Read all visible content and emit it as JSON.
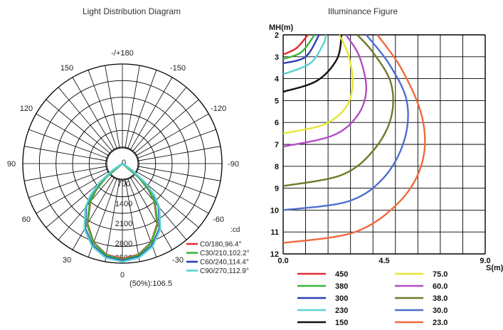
{
  "chart_data": [
    {
      "type": "polar-line",
      "title": "Light Distribution Diagram",
      "unit_label": ":cd",
      "angle_labels": [
        "-/+180",
        "150",
        "120",
        "90",
        "60",
        "30",
        "0",
        "-30",
        "-60",
        "-90",
        "-120",
        "-150"
      ],
      "radial_labels": [
        "0",
        "700",
        "1400",
        "2100",
        "2800",
        "3500"
      ],
      "rmax": 3500,
      "half_power_label": "(50%):106.5",
      "series": [
        {
          "name": "C0/180,96.4°",
          "color": "#e03030",
          "angles": [
            0,
            10,
            20,
            30,
            40,
            45,
            50,
            55
          ],
          "values": [
            3350,
            3250,
            2950,
            2450,
            1750,
            1300,
            750,
            0
          ]
        },
        {
          "name": "C30/210,102.2°",
          "color": "#3cb43c",
          "angles": [
            0,
            10,
            20,
            30,
            40,
            45,
            50,
            55
          ],
          "values": [
            3380,
            3270,
            2970,
            2480,
            1780,
            1330,
            780,
            0
          ]
        },
        {
          "name": "C60/240,114.4°",
          "color": "#2e3fb4",
          "angles": [
            0,
            10,
            20,
            30,
            40,
            45,
            50,
            55,
            58
          ],
          "values": [
            3420,
            3330,
            3060,
            2620,
            1980,
            1550,
            1020,
            400,
            0
          ]
        },
        {
          "name": "C90/270,112.9°",
          "color": "#5ad2d2",
          "angles": [
            0,
            10,
            20,
            30,
            40,
            45,
            50,
            55,
            58
          ],
          "values": [
            3450,
            3360,
            3100,
            2660,
            2020,
            1590,
            1060,
            440,
            0
          ]
        }
      ]
    },
    {
      "type": "contour",
      "title": "Illuminance Figure",
      "ylabel": "MH(m)",
      "xlabel": "S(m)",
      "y_ticks": [
        2,
        3,
        4,
        5,
        6,
        7,
        8,
        9,
        10,
        11,
        12
      ],
      "x_ticks": [
        "0.0",
        "4.5",
        "9.0"
      ],
      "xlim": [
        0,
        9
      ],
      "ylim": [
        2,
        12
      ],
      "series": [
        {
          "name": "450",
          "color": "#e03030",
          "points": [
            [
              0,
              2.9
            ],
            [
              0.6,
              2.6
            ],
            [
              1.1,
              2.0
            ]
          ]
        },
        {
          "name": "380",
          "color": "#3cb43c",
          "points": [
            [
              0,
              3.1
            ],
            [
              0.8,
              2.8
            ],
            [
              1.4,
              2.0
            ]
          ]
        },
        {
          "name": "300",
          "color": "#2e3fb4",
          "points": [
            [
              0,
              3.3
            ],
            [
              1.0,
              3.0
            ],
            [
              1.6,
              2.0
            ]
          ]
        },
        {
          "name": "230",
          "color": "#5ad2d2",
          "points": [
            [
              0,
              3.8
            ],
            [
              1.2,
              3.3
            ],
            [
              1.8,
              2.4
            ],
            [
              1.9,
              2.0
            ]
          ]
        },
        {
          "name": "150",
          "color": "#111111",
          "points": [
            [
              0,
              4.6
            ],
            [
              1.5,
              4.1
            ],
            [
              2.4,
              3.1
            ],
            [
              2.6,
              2.0
            ]
          ]
        },
        {
          "name": "75.0",
          "color": "#e6e635",
          "points": [
            [
              0,
              6.5
            ],
            [
              1.8,
              6.1
            ],
            [
              2.8,
              5.3
            ],
            [
              3.1,
              4.2
            ],
            [
              2.9,
              2.9
            ],
            [
              2.5,
              2.0
            ]
          ]
        },
        {
          "name": "60.0",
          "color": "#b44cc8",
          "points": [
            [
              0,
              7.1
            ],
            [
              2.2,
              6.6
            ],
            [
              3.3,
              5.7
            ],
            [
              3.7,
              4.5
            ],
            [
              3.4,
              3.0
            ],
            [
              2.8,
              2.0
            ]
          ]
        },
        {
          "name": "38.0",
          "color": "#6e7a28",
          "points": [
            [
              0,
              8.9
            ],
            [
              2.6,
              8.4
            ],
            [
              4.0,
              7.3
            ],
            [
              4.8,
              5.8
            ],
            [
              4.8,
              4.2
            ],
            [
              4.0,
              2.8
            ],
            [
              3.3,
              2.0
            ]
          ]
        },
        {
          "name": "30.0",
          "color": "#4f6fd0",
          "points": [
            [
              0,
              10.0
            ],
            [
              2.9,
              9.6
            ],
            [
              4.5,
              8.5
            ],
            [
              5.4,
              6.8
            ],
            [
              5.5,
              5.0
            ],
            [
              4.7,
              3.3
            ],
            [
              3.7,
              2.0
            ]
          ]
        },
        {
          "name": "23.0",
          "color": "#f06a3c",
          "points": [
            [
              0,
              11.5
            ],
            [
              3.2,
              11.0
            ],
            [
              5.2,
              9.6
            ],
            [
              6.2,
              7.8
            ],
            [
              6.2,
              5.8
            ],
            [
              5.3,
              3.6
            ],
            [
              4.2,
              2.0
            ]
          ]
        }
      ]
    }
  ]
}
